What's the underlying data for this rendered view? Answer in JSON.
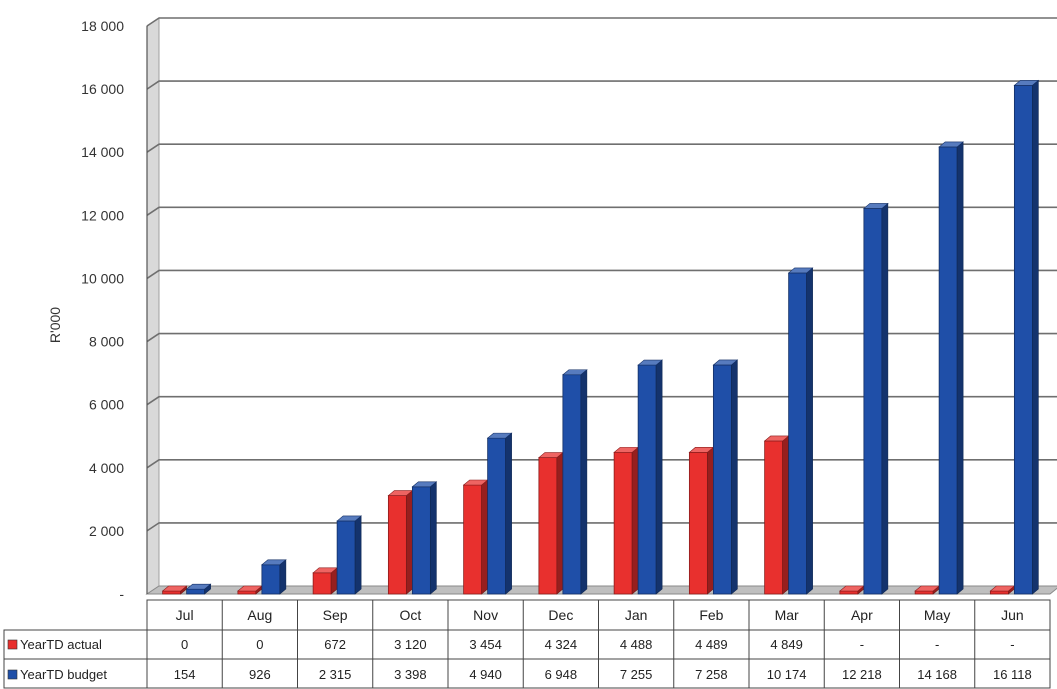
{
  "chart_data": {
    "type": "bar",
    "ylabel": "R'000",
    "ylim": [
      0,
      18000
    ],
    "y_ticks": [
      {
        "value": 0,
        "label": "-"
      },
      {
        "value": 2000,
        "label": "2 000"
      },
      {
        "value": 4000,
        "label": "4 000"
      },
      {
        "value": 6000,
        "label": "6 000"
      },
      {
        "value": 8000,
        "label": "8 000"
      },
      {
        "value": 10000,
        "label": "10 000"
      },
      {
        "value": 12000,
        "label": "12 000"
      },
      {
        "value": 14000,
        "label": "14 000"
      },
      {
        "value": 16000,
        "label": "16 000"
      },
      {
        "value": 18000,
        "label": "18 000"
      }
    ],
    "grid": true,
    "legend": "data-table",
    "categories": [
      "Jul",
      "Aug",
      "Sep",
      "Oct",
      "Nov",
      "Dec",
      "Jan",
      "Feb",
      "Mar",
      "Apr",
      "May",
      "Jun"
    ],
    "series": [
      {
        "name": "YearTD actual",
        "color": "#e8302e",
        "values": [
          0,
          0,
          672,
          3120,
          3454,
          4324,
          4488,
          4489,
          4849,
          0,
          0,
          0
        ],
        "labels": [
          "0",
          "0",
          "672",
          "3 120",
          "3 454",
          "4 324",
          "4 488",
          "4 489",
          "4 849",
          "-",
          "-",
          "-"
        ]
      },
      {
        "name": "YearTD budget",
        "color": "#1f4fa8",
        "values": [
          154,
          926,
          2315,
          3398,
          4940,
          6948,
          7255,
          7258,
          10174,
          12218,
          14168,
          16118
        ],
        "labels": [
          "154",
          "926",
          "2 315",
          "3 398",
          "4 940",
          "6 948",
          "7 255",
          "7 258",
          "10 174",
          "12 218",
          "14 168",
          "16 118"
        ]
      }
    ]
  }
}
